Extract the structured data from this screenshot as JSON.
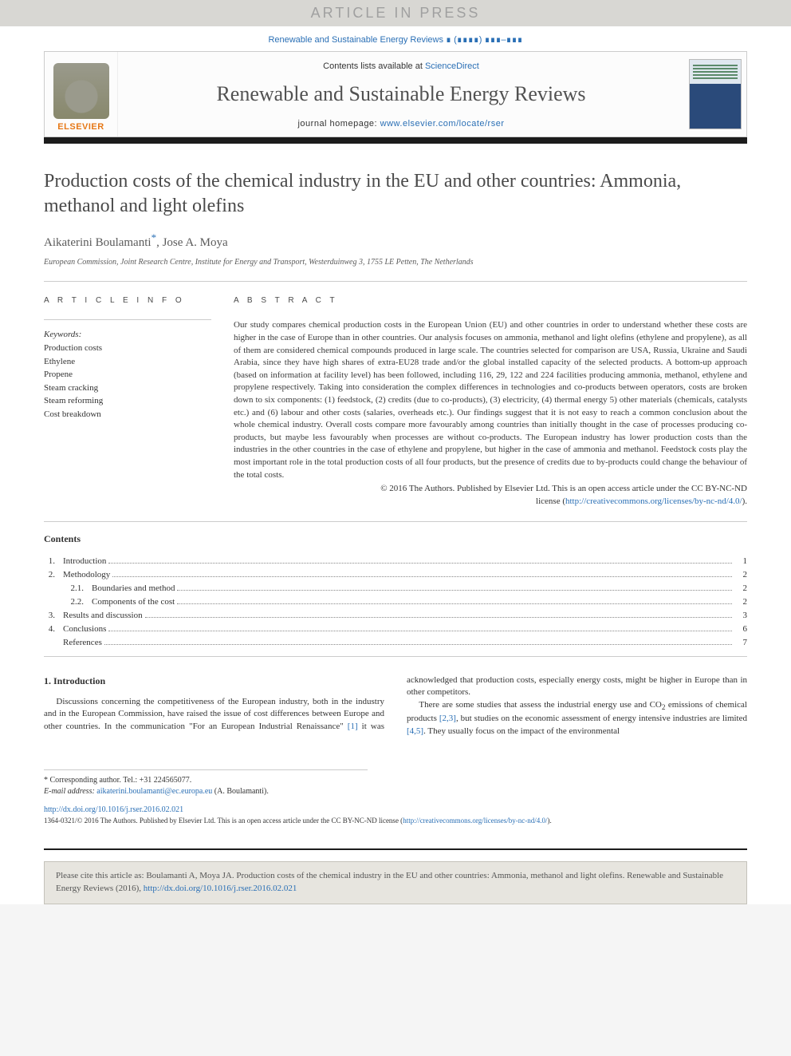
{
  "banner": {
    "text": "ARTICLE IN PRESS"
  },
  "citation_header": "Renewable and Sustainable Energy Reviews ∎ (∎∎∎∎) ∎∎∎–∎∎∎",
  "header": {
    "contents_prefix": "Contents lists available at ",
    "contents_link": "ScienceDirect",
    "journal": "Renewable and Sustainable Energy Reviews",
    "homepage_prefix": "journal homepage: ",
    "homepage_url": "www.elsevier.com/locate/rser",
    "publisher": "ELSEVIER"
  },
  "title": "Production costs of the chemical industry in the EU and other countries: Ammonia, methanol and light olefins",
  "authors": {
    "a1": "Aikaterini Boulamanti",
    "sep": ", ",
    "a2": "Jose A. Moya",
    "corr_marker": "*"
  },
  "affiliation": "European Commission, Joint Research Centre, Institute for Energy and Transport, Westerduinweg 3, 1755 LE Petten, The Netherlands",
  "info": {
    "heading": "A R T I C L E  I N F O",
    "keywords_label": "Keywords:",
    "keywords": [
      "Production costs",
      "Ethylene",
      "Propene",
      "Steam cracking",
      "Steam reforming",
      "Cost breakdown"
    ]
  },
  "abstract": {
    "heading": "A B S T R A C T",
    "text": "Our study compares chemical production costs in the European Union (EU) and other countries in order to understand whether these costs are higher in the case of Europe than in other countries. Our analysis focuses on ammonia, methanol and light olefins (ethylene and propylene), as all of them are considered chemical compounds produced in large scale. The countries selected for comparison are USA, Russia, Ukraine and Saudi Arabia, since they have high shares of extra-EU28 trade and/or the global installed capacity of the selected products. A bottom-up approach (based on information at facility level) has been followed, including 116, 29, 122 and 224 facilities producing ammonia, methanol, ethylene and propylene respectively. Taking into consideration the complex differences in technologies and co-products between operators, costs are broken down to six components: (1) feedstock, (2) credits (due to co-products), (3) electricity, (4) thermal energy 5) other materials (chemicals, catalysts etc.) and (6) labour and other costs (salaries, overheads etc.). Our findings suggest that it is not easy to reach a common conclusion about the whole chemical industry. Overall costs compare more favourably among countries than initially thought in the case of processes producing co-products, but maybe less favourably when processes are without co-products. The European industry has lower production costs than the industries in the other countries in the case of ethylene and propylene, but higher in the case of ammonia and methanol. Feedstock costs play the most important role in the total production costs of all four products, but the presence of credits due to by-products could change the behaviour of the total costs.",
    "copyright": "© 2016 The Authors. Published by Elsevier Ltd. This is an open access article under the CC BY-NC-ND",
    "license_prefix": "license (",
    "license_url": "http://creativecommons.org/licenses/by-nc-nd/4.0/",
    "license_suffix": ")."
  },
  "contents": {
    "title": "Contents",
    "items": [
      {
        "num": "1.",
        "label": "Introduction",
        "page": "1"
      },
      {
        "num": "2.",
        "label": "Methodology",
        "page": "2"
      },
      {
        "num": "2.1.",
        "label": "Boundaries and method",
        "page": "2",
        "sub": true
      },
      {
        "num": "2.2.",
        "label": "Components of the cost",
        "page": "2",
        "sub": true
      },
      {
        "num": "3.",
        "label": "Results and discussion",
        "page": "3"
      },
      {
        "num": "4.",
        "label": "Conclusions",
        "page": "6"
      },
      {
        "num": "",
        "label": "References",
        "page": "7"
      }
    ]
  },
  "body": {
    "heading": "1.  Introduction",
    "p1a": "Discussions concerning the competitiveness of the European industry, both in the industry and in the European Commission, have raised the issue of cost differences between Europe and other countries. In the communication \"For an European Industrial Renaissance\" ",
    "ref1": "[1]",
    "p1b": " it was acknowledged that production costs, especially energy costs, might be higher in Europe than in other competitors.",
    "p2a": "There are some studies that assess the industrial energy use and CO",
    "sub2": "2",
    "p2b": " emissions of chemical products ",
    "ref23": "[2,3]",
    "p2c": ", but studies on the economic assessment of energy intensive industries are limited ",
    "ref45": "[4,5]",
    "p2d": ". They usually focus on the impact of the environmental"
  },
  "footnotes": {
    "corr": "* Corresponding author. Tel.: +31 224565077.",
    "email_label": "E-mail address: ",
    "email": "aikaterini.boulamanti@ec.europa.eu",
    "email_suffix": " (A. Boulamanti)."
  },
  "doi": "http://dx.doi.org/10.1016/j.rser.2016.02.021",
  "issn_line_a": "1364-0321/© 2016 The Authors. Published by Elsevier Ltd. This is an open access article under the CC BY-NC-ND license (",
  "issn_license": "http://creativecommons.org/licenses/by-nc-nd/4.0/",
  "issn_line_b": ").",
  "citebox": {
    "text": "Please cite this article as: Boulamanti A, Moya JA. Production costs of the chemical industry in the EU and other countries: Ammonia, methanol and light olefins. Renewable and Sustainable Energy Reviews (2016), ",
    "doi": "http://dx.doi.org/10.1016/j.rser.2016.02.021"
  }
}
